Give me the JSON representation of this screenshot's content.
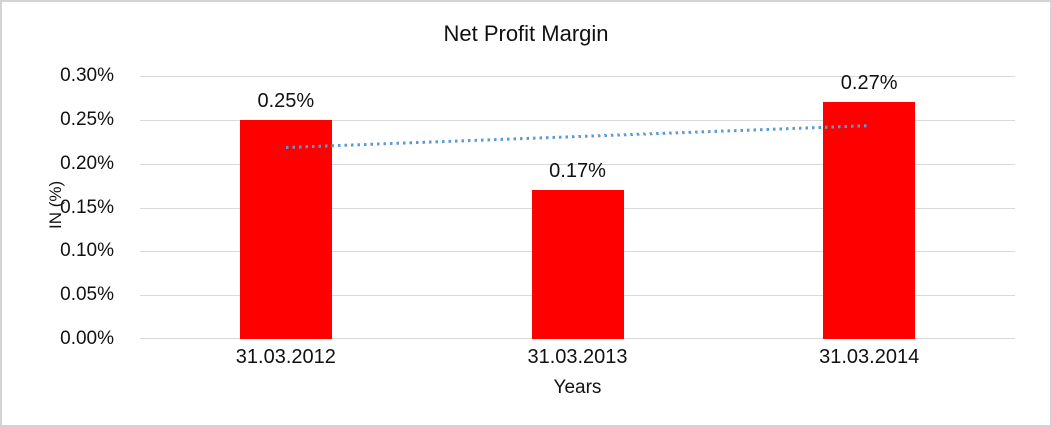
{
  "chart_data": {
    "type": "bar",
    "title": "Net Profit Margin",
    "categories": [
      "31.03.2012",
      "31.03.2013",
      "31.03.2014"
    ],
    "values": [
      0.25,
      0.17,
      0.27
    ],
    "data_labels": [
      "0.25%",
      "0.17%",
      "0.27%"
    ],
    "xlabel": "Years",
    "ylabel": "IN (%)",
    "yticks": [
      "0.30%",
      "0.25%",
      "0.20%",
      "0.15%",
      "0.10%",
      "0.05%",
      "0.00%"
    ],
    "ylim": [
      0,
      0.3
    ],
    "grid": true,
    "legend": false,
    "bar_color": "#ff0000",
    "gridline_color": "#d9d9d9",
    "trendline": {
      "type": "linear",
      "style": "dotted",
      "color": "#5b9bd5",
      "start_value": 0.219,
      "end_value": 0.244
    }
  }
}
